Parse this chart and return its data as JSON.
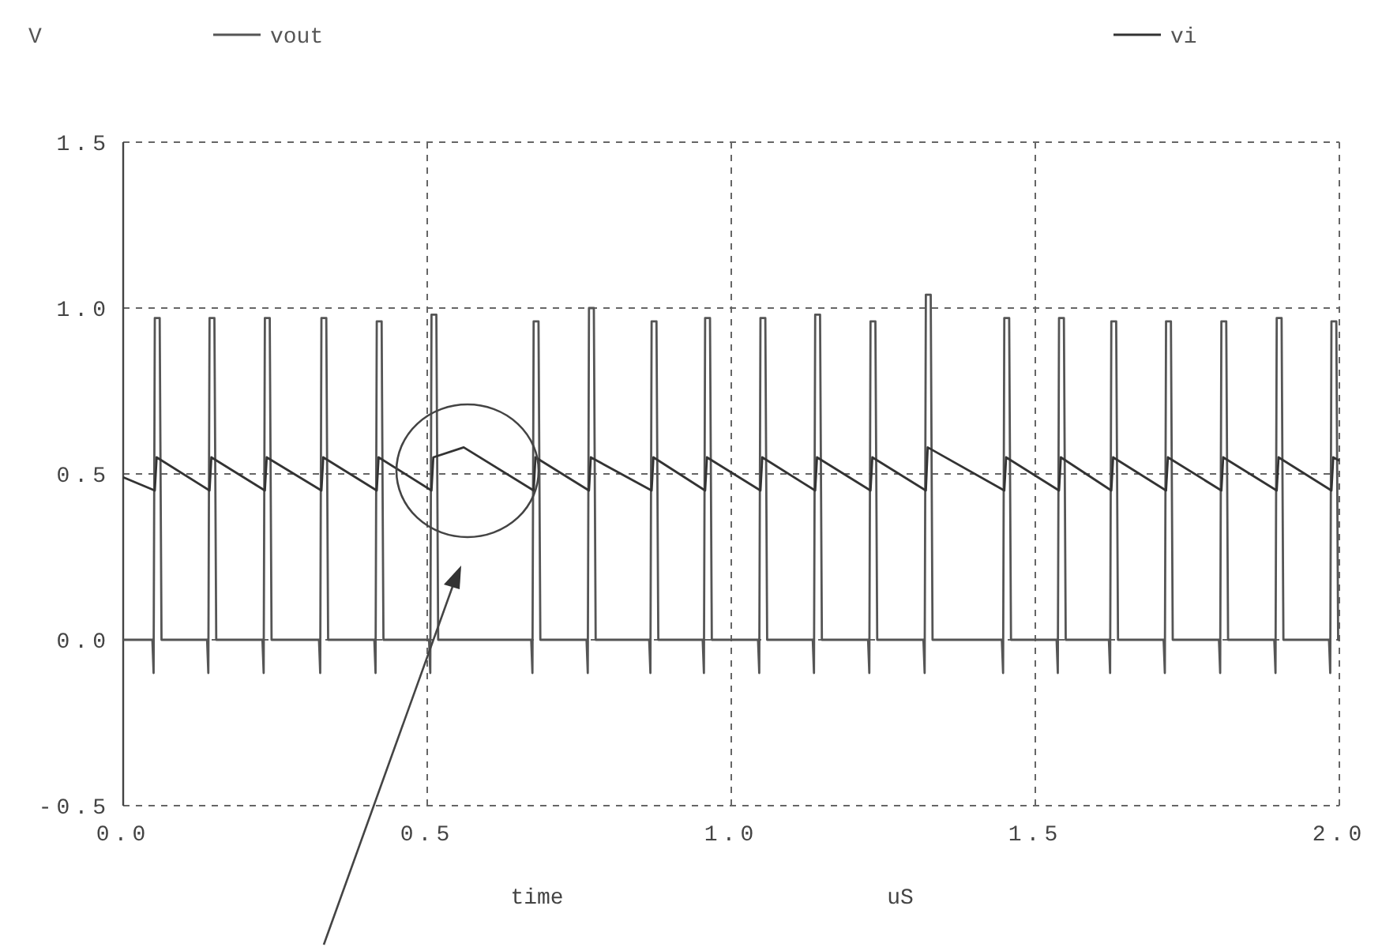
{
  "chart_data": {
    "type": "line",
    "ylabel": "V",
    "xlabel": "time",
    "annotations": [
      "uS"
    ],
    "xlim": [
      0,
      2
    ],
    "ylim": [
      -0.5,
      1.5
    ],
    "xticks": [
      {
        "value": 0,
        "label": "0.0"
      },
      {
        "value": 0.5,
        "label": "0.5"
      },
      {
        "value": 1,
        "label": "1.0"
      },
      {
        "value": 1.5,
        "label": "1.5"
      },
      {
        "value": 2,
        "label": "2.0"
      }
    ],
    "yticks": [
      {
        "value": -0.5,
        "label": "-0.5"
      },
      {
        "value": 0,
        "label": "0.0"
      },
      {
        "value": 0.5,
        "label": "0.5"
      },
      {
        "value": 1,
        "label": "1.0"
      },
      {
        "value": 1.5,
        "label": "1.5"
      }
    ],
    "grid": true,
    "legend": "top",
    "marker": "none",
    "line_style": "solid",
    "series": [
      {
        "name": "vout",
        "color": "#555555",
        "x": [
          0,
          0.048,
          0.05,
          0.052,
          0.06,
          0.063,
          0.138,
          0.14,
          0.142,
          0.15,
          0.153,
          0.229,
          0.231,
          0.233,
          0.241,
          0.244,
          0.322,
          0.324,
          0.326,
          0.334,
          0.337,
          0.413,
          0.415,
          0.417,
          0.425,
          0.428,
          0.503,
          0.505,
          0.507,
          0.515,
          0.518,
          0.671,
          0.673,
          0.675,
          0.683,
          0.686,
          0.762,
          0.764,
          0.766,
          0.774,
          0.777,
          0.865,
          0.867,
          0.869,
          0.877,
          0.88,
          0.953,
          0.955,
          0.957,
          0.965,
          0.968,
          1.044,
          1.046,
          1.048,
          1.056,
          1.059,
          1.134,
          1.136,
          1.138,
          1.146,
          1.149,
          1.225,
          1.227,
          1.229,
          1.237,
          1.24,
          1.316,
          1.318,
          1.32,
          1.328,
          1.331,
          1.445,
          1.447,
          1.449,
          1.457,
          1.46,
          1.535,
          1.537,
          1.539,
          1.547,
          1.55,
          1.621,
          1.623,
          1.625,
          1.633,
          1.636,
          1.711,
          1.713,
          1.715,
          1.723,
          1.726,
          1.802,
          1.804,
          1.806,
          1.814,
          1.817,
          1.893,
          1.895,
          1.897,
          1.905,
          1.908,
          1.983,
          1.985,
          1.987,
          1.995,
          1.998,
          2.0
        ],
        "values": [
          0,
          0,
          -0.1,
          0.97,
          0.97,
          0,
          0,
          -0.1,
          0.97,
          0.97,
          0,
          0,
          -0.1,
          0.97,
          0.97,
          0,
          0,
          -0.1,
          0.97,
          0.97,
          0,
          0,
          -0.1,
          0.96,
          0.96,
          0,
          0,
          -0.1,
          0.98,
          0.98,
          0,
          0,
          -0.1,
          0.96,
          0.96,
          0,
          0,
          -0.1,
          1.0,
          1.0,
          0,
          0,
          -0.1,
          0.96,
          0.96,
          0,
          0,
          -0.1,
          0.97,
          0.97,
          0,
          0,
          -0.1,
          0.97,
          0.97,
          0,
          0,
          -0.1,
          0.98,
          0.98,
          0,
          0,
          -0.1,
          0.96,
          0.96,
          0,
          0,
          -0.1,
          1.04,
          1.04,
          0,
          0,
          -0.1,
          0.97,
          0.97,
          0,
          0,
          -0.1,
          0.97,
          0.97,
          0,
          0,
          -0.1,
          0.96,
          0.96,
          0,
          0,
          -0.1,
          0.96,
          0.96,
          0,
          0,
          -0.1,
          0.96,
          0.96,
          0,
          0,
          -0.1,
          0.97,
          0.97,
          0,
          0,
          -0.1,
          0.96,
          0.96,
          0,
          0
        ]
      },
      {
        "name": "vi",
        "color": "#333333",
        "x": [
          0,
          0.052,
          0.055,
          0.142,
          0.145,
          0.233,
          0.236,
          0.326,
          0.329,
          0.417,
          0.42,
          0.507,
          0.51,
          0.56,
          0.675,
          0.678,
          0.766,
          0.769,
          0.869,
          0.872,
          0.957,
          0.96,
          1.048,
          1.051,
          1.138,
          1.141,
          1.229,
          1.232,
          1.32,
          1.323,
          1.449,
          1.452,
          1.539,
          1.542,
          1.625,
          1.628,
          1.715,
          1.718,
          1.806,
          1.809,
          1.897,
          1.9,
          1.987,
          1.99,
          2.0
        ],
        "values": [
          0.49,
          0.45,
          0.55,
          0.45,
          0.55,
          0.45,
          0.55,
          0.45,
          0.55,
          0.45,
          0.55,
          0.45,
          0.55,
          0.58,
          0.45,
          0.55,
          0.45,
          0.55,
          0.45,
          0.55,
          0.45,
          0.55,
          0.45,
          0.55,
          0.45,
          0.55,
          0.45,
          0.55,
          0.45,
          0.58,
          0.45,
          0.55,
          0.45,
          0.55,
          0.45,
          0.55,
          0.45,
          0.55,
          0.45,
          0.55,
          0.45,
          0.55,
          0.45,
          0.55,
          0.54
        ]
      }
    ]
  }
}
